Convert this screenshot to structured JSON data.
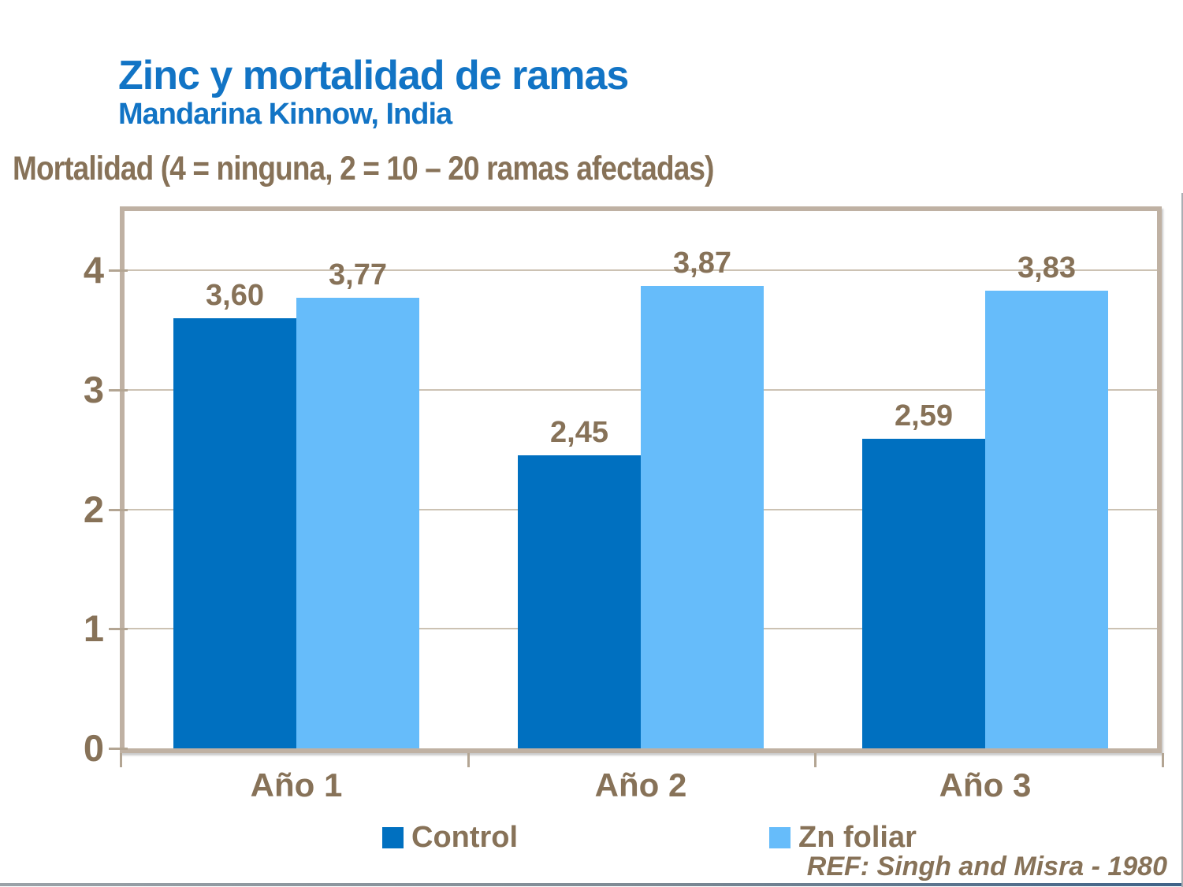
{
  "slide": {
    "title": "Zinc y mortalidad de ramas",
    "subtitle": "Mandarina Kinnow, India",
    "axis_caption": "Mortalidad (4 = ninguna, 2 = 10 – 20 ramas afectadas)",
    "reference": "REF: Singh and Misra - 1980"
  },
  "colors": {
    "title_blue": "#1274C5",
    "text_brown": "#877258",
    "control": "#0070C0",
    "zn_foliar": "#66BCFA",
    "frame_tan": "#BFB1A3",
    "gridline_tan": "#CCC2B3",
    "tick_tan": "#B3A593"
  },
  "chart_data": {
    "type": "bar",
    "title": "Zinc y mortalidad de ramas — Mandarina Kinnow, India",
    "ylabel": "Mortalidad (4 = ninguna, 2 = 10 – 20 ramas afectadas)",
    "xlabel": "",
    "categories": [
      "Año 1",
      "Año 2",
      "Año 3"
    ],
    "series": [
      {
        "name": "Control",
        "color_key": "control",
        "values": [
          3.6,
          2.45,
          2.59
        ],
        "labels": [
          "3,60",
          "2,45",
          "2,59"
        ]
      },
      {
        "name": "Zn foliar",
        "color_key": "zn_foliar",
        "values": [
          3.77,
          3.87,
          3.83
        ],
        "labels": [
          "3,77",
          "3,87",
          "3,83"
        ]
      }
    ],
    "yticks": [
      0,
      1,
      2,
      3,
      4
    ],
    "ylim": [
      0,
      4.5
    ],
    "grid": true,
    "legend_position": "bottom"
  }
}
